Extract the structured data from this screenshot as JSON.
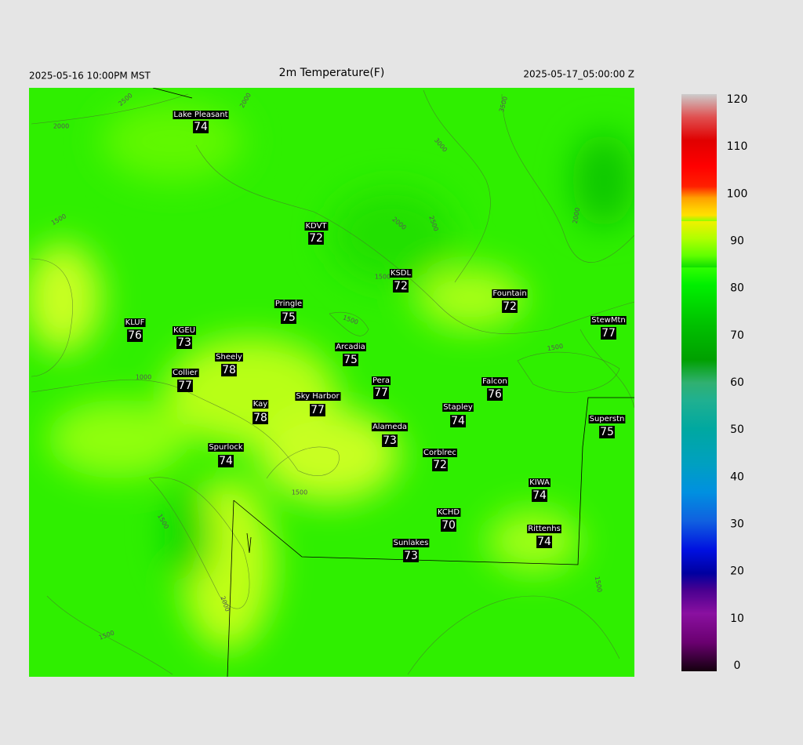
{
  "header": {
    "left": "2025-05-16 10:00PM MST",
    "title": "2m Temperature(F)",
    "right": "2025-05-17_05:00:00 Z"
  },
  "stations": [
    {
      "name": "Lake Pleasant",
      "value": 74
    },
    {
      "name": "KDVT",
      "value": 72
    },
    {
      "name": "KSDL",
      "value": 72
    },
    {
      "name": "Pringle",
      "value": 75
    },
    {
      "name": "KLUF",
      "value": 76
    },
    {
      "name": "KGEU",
      "value": 73
    },
    {
      "name": "Fountain",
      "value": 72
    },
    {
      "name": "StewMtn",
      "value": 77
    },
    {
      "name": "Arcadia",
      "value": 75
    },
    {
      "name": "Sheely",
      "value": 78
    },
    {
      "name": "Collier",
      "value": 77
    },
    {
      "name": "Pera",
      "value": 77
    },
    {
      "name": "Falcon",
      "value": 76
    },
    {
      "name": "Sky Harbor",
      "value": 77
    },
    {
      "name": "Kay",
      "value": 78
    },
    {
      "name": "Stapley",
      "value": 74
    },
    {
      "name": "Superstn",
      "value": 75
    },
    {
      "name": "Alameda",
      "value": 73
    },
    {
      "name": "Spurlock",
      "value": 74
    },
    {
      "name": "Corblrec",
      "value": 72
    },
    {
      "name": "KIWA",
      "value": 74
    },
    {
      "name": "KCHD",
      "value": 70
    },
    {
      "name": "Rittenhs",
      "value": 74
    },
    {
      "name": "Sunlakes",
      "value": 73
    }
  ],
  "contour_labels": [
    "2500",
    "2000",
    "2000",
    "3500",
    "3000",
    "1500",
    "2000",
    "2500",
    "1500",
    "2000",
    "1500",
    "1500",
    "1000",
    "1500",
    "1500",
    "2000",
    "1500",
    "1500"
  ],
  "colorbar": {
    "ticks": [
      0,
      10,
      20,
      30,
      40,
      50,
      60,
      70,
      80,
      90,
      100,
      110,
      120
    ]
  }
}
